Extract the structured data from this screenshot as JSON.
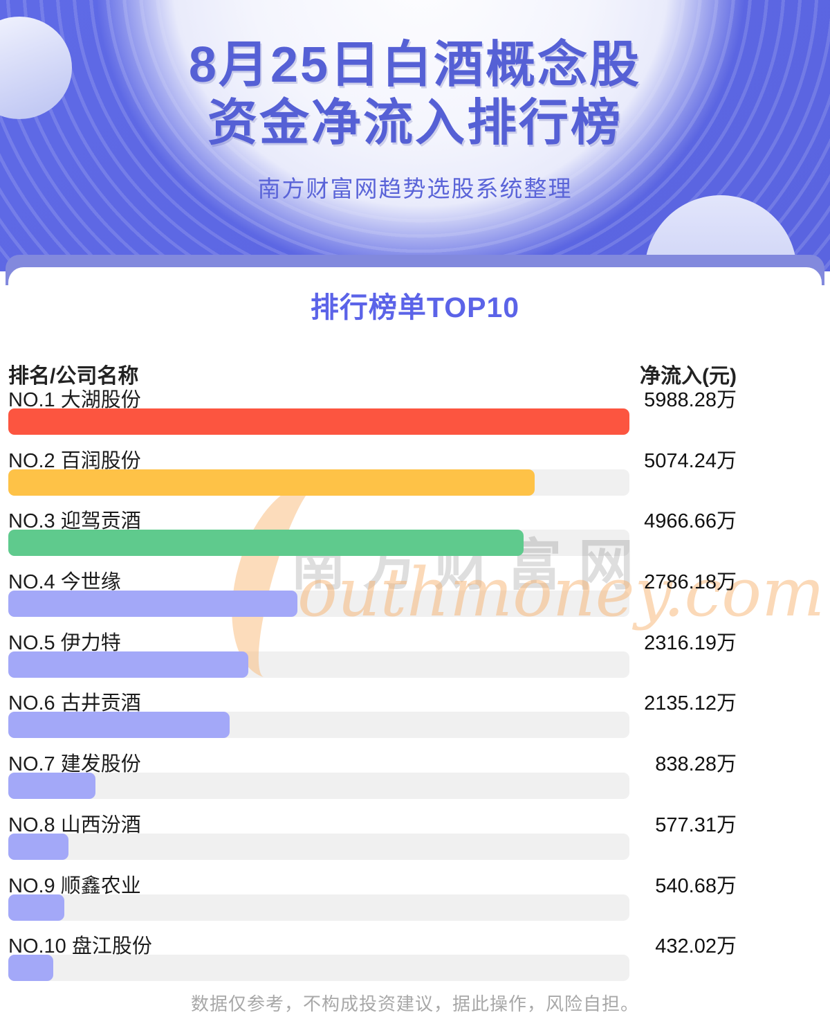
{
  "header": {
    "title_line1": "8月25日白酒概念股",
    "title_line2": "资金净流入排行榜",
    "subtitle": "南方财富网趋势选股系统整理"
  },
  "section": {
    "heading": "排行榜单TOP10"
  },
  "table": {
    "col_left": "排名/公司名称",
    "col_right": "净流入(元)"
  },
  "watermark": {
    "cn": "南方财富网",
    "en": "outhmoney.com"
  },
  "footer": {
    "disclaimer": "数据仅参考，不构成投资建议，据此操作，风险自担。"
  },
  "colors": {
    "header_bg": "#5c66e3",
    "title_text": "#5560d5",
    "heading_text": "#5b63e8",
    "band": "#8289dd",
    "track": "#f0f0f0",
    "bar_red": "#fc5540",
    "bar_yellow": "#fec247",
    "bar_green": "#5fca8d",
    "bar_purple": "#a3a8f8"
  },
  "chart_data": {
    "type": "bar",
    "orientation": "horizontal",
    "title": "8月25日白酒概念股资金净流入排行榜",
    "subtitle": "排行榜单TOP10",
    "xlabel": "净流入(元)",
    "ylabel": "排名/公司名称",
    "unit": "万",
    "max": 5988.28,
    "categories": [
      "NO.1 大湖股份",
      "NO.2 百润股份",
      "NO.3 迎驾贡酒",
      "NO.4 今世缘",
      "NO.5 伊力特",
      "NO.6 古井贡酒",
      "NO.7 建发股份",
      "NO.8 山西汾酒",
      "NO.9 顺鑫农业",
      "NO.10 盘江股份"
    ],
    "values": [
      5988.28,
      5074.24,
      4966.66,
      2786.18,
      2316.19,
      2135.12,
      838.28,
      577.31,
      540.68,
      432.02
    ],
    "value_labels": [
      "5988.28万",
      "5074.24万",
      "4966.66万",
      "2786.18万",
      "2316.19万",
      "2135.12万",
      "838.28万",
      "577.31万",
      "540.68万",
      "432.02万"
    ],
    "bar_colors": [
      "#fc5540",
      "#fec247",
      "#5fca8d",
      "#a3a8f8",
      "#a3a8f8",
      "#a3a8f8",
      "#a3a8f8",
      "#a3a8f8",
      "#a3a8f8",
      "#a3a8f8"
    ]
  }
}
